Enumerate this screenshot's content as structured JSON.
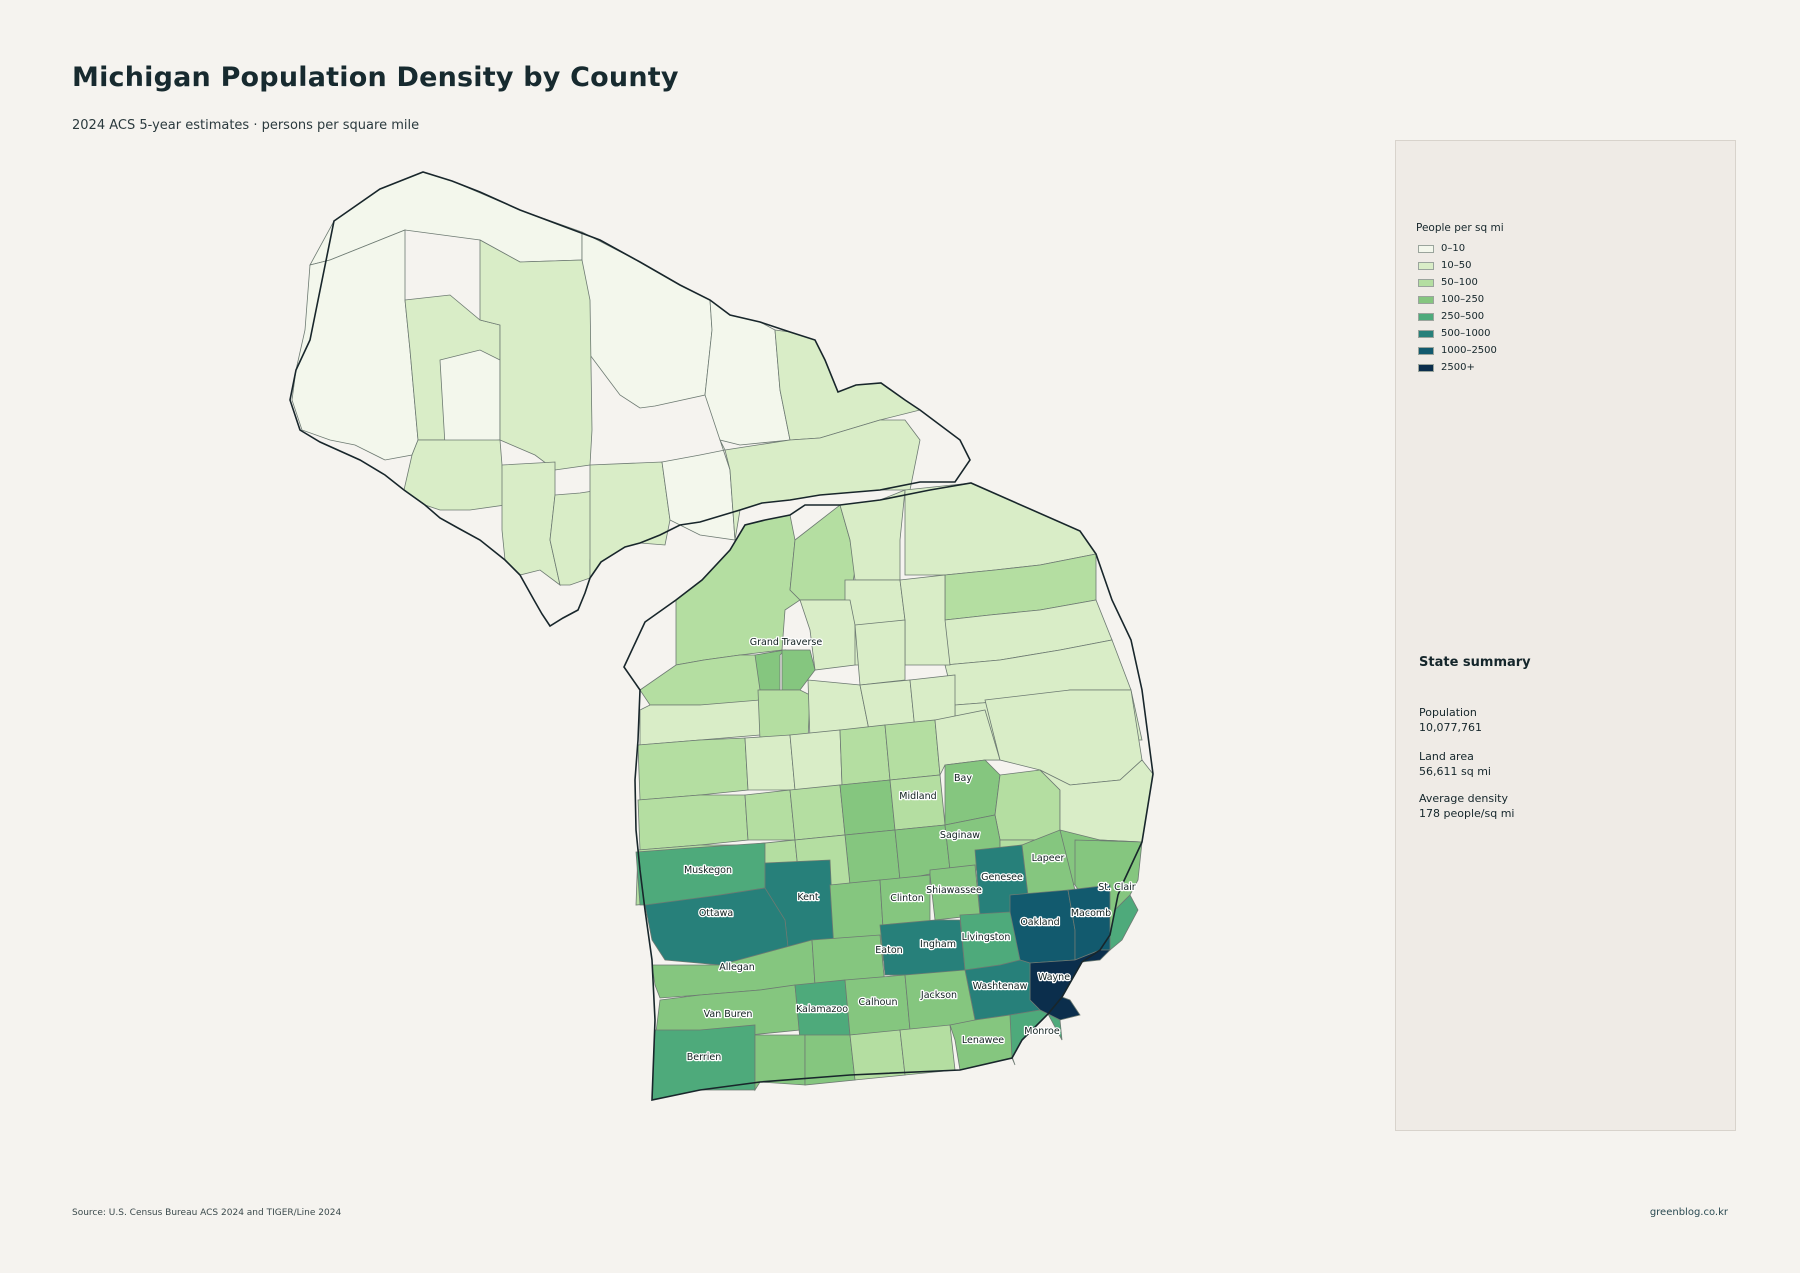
{
  "header": {
    "title": "Michigan Population Density by County",
    "subtitle": "2024 ACS 5-year estimates · persons per square mile"
  },
  "legend": {
    "title": "People per sq mi",
    "bins": [
      {
        "label": "0–10",
        "color": "#f3f7ec"
      },
      {
        "label": "10–50",
        "color": "#d9edc7"
      },
      {
        "label": "50–100",
        "color": "#b4dea1"
      },
      {
        "label": "100–250",
        "color": "#85c67f"
      },
      {
        "label": "250–500",
        "color": "#4eaa7b"
      },
      {
        "label": "500–1000",
        "color": "#27807a"
      },
      {
        "label": "1000–2500",
        "color": "#125a6e"
      },
      {
        "label": "2500+",
        "color": "#0b2e4c"
      }
    ]
  },
  "summary": {
    "title": "State summary",
    "stats": [
      {
        "label": "Population",
        "value": "10,077,761"
      },
      {
        "label": "Land area",
        "value": "56,611 sq mi"
      },
      {
        "label": "Average density",
        "value": "178 people/sq mi"
      }
    ]
  },
  "counties": {
    "Grand Traverse": "100–250",
    "Bay": "100–250",
    "Midland": "100–250",
    "Saginaw": "100–250",
    "Lapeer": "100–250",
    "St. Clair": "100–250",
    "Genesee": "500–1000",
    "Muskegon": "250–500",
    "Kent": "500–1000",
    "Shiawassee": "100–250",
    "Ottawa": "500–1000",
    "Clinton": "100–250",
    "Oakland": "1000–2500",
    "Macomb": "1000–2500",
    "Eaton": "100–250",
    "Ingham": "500–1000",
    "Livingston": "250–500",
    "Allegan": "100–250",
    "Wayne": "2500+",
    "Washtenaw": "500–1000",
    "Van Buren": "100–250",
    "Kalamazoo": "250–500",
    "Calhoun": "100–250",
    "Jackson": "100–250",
    "Monroe": "250–500",
    "Lenawee": "100–250",
    "Berrien": "250–500"
  },
  "footer": {
    "source": "Source: U.S. Census Bureau ACS 2024 and TIGER/Line 2024",
    "credit": "greenblog.co.kr"
  }
}
